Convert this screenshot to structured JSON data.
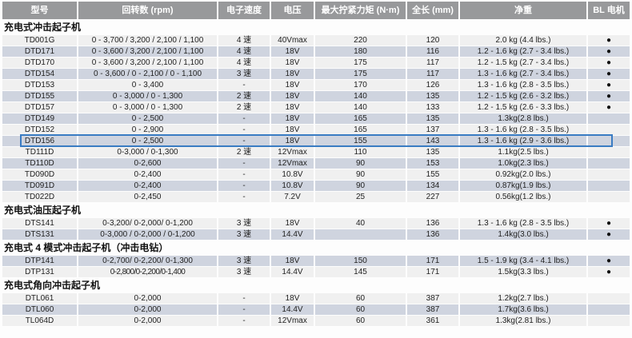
{
  "table": {
    "selected_model": "DTD156",
    "bl_dot_glyph": "●",
    "colors": {
      "header_bg": "#98999b",
      "row_bg": "#f0f0f0",
      "row_alt_bg": "#cfd4df",
      "highlight_border": "#3a7cc3",
      "bl_dot": "#111111"
    },
    "columns": [
      {
        "key": "model",
        "label": "型号"
      },
      {
        "key": "rpm",
        "label": "回转数 (rpm)"
      },
      {
        "key": "speed",
        "label": "电子速度"
      },
      {
        "key": "voltage",
        "label": "电压"
      },
      {
        "key": "torque",
        "label": "最大拧紧力矩 (N·m)"
      },
      {
        "key": "length",
        "label": "全长 (mm)"
      },
      {
        "key": "weight",
        "label": "净重"
      },
      {
        "key": "bl",
        "label": "BL 电机"
      }
    ],
    "sections": [
      {
        "title": "充电式冲击起子机",
        "rows": [
          {
            "model": "TD001G",
            "rpm": "0 - 3,700 / 3,200 / 2,100 / 1,100",
            "speed": "4 速",
            "voltage": "40Vmax",
            "torque": "220",
            "length": "120",
            "weight": "2.0 kg (4.4 lbs.)",
            "bl": true
          },
          {
            "model": "DTD171",
            "rpm": "0 - 3,600 / 3,200 / 2,100 / 1,100",
            "speed": "4 速",
            "voltage": "18V",
            "torque": "180",
            "length": "116",
            "weight": "1.2 - 1.6 kg (2.7 - 3.4 lbs.)",
            "bl": true
          },
          {
            "model": "DTD170",
            "rpm": "0 - 3,600 / 3,200 / 2,100 / 1,100",
            "speed": "4 速",
            "voltage": "18V",
            "torque": "175",
            "length": "117",
            "weight": "1.2 - 1.5 kg (2.7 - 3.4 lbs.)",
            "bl": true
          },
          {
            "model": "DTD154",
            "rpm": "0 - 3,600 / 0 - 2,100 / 0 - 1,100",
            "speed": "3 速",
            "voltage": "18V",
            "torque": "175",
            "length": "117",
            "weight": "1.3 - 1.6 kg (2.7 - 3.4 lbs.)",
            "bl": true
          },
          {
            "model": "DTD153",
            "rpm": "0 - 3,400",
            "speed": "-",
            "voltage": "18V",
            "torque": "170",
            "length": "126",
            "weight": "1.3 - 1.6 kg (2.8 - 3.5 lbs.)",
            "bl": true
          },
          {
            "model": "DTD155",
            "rpm": "0 - 3,000 / 0 - 1,300",
            "speed": "2 速",
            "voltage": "18V",
            "torque": "140",
            "length": "135",
            "weight": "1.2 - 1.5 kg (2.6 - 3.2 lbs.)",
            "bl": true
          },
          {
            "model": "DTD157",
            "rpm": "0 - 3,000 / 0 - 1,300",
            "speed": "2 速",
            "voltage": "18V",
            "torque": "140",
            "length": "133",
            "weight": "1.2 - 1.5 kg (2.6 - 3.3 lbs.)",
            "bl": true
          },
          {
            "model": "DTD149",
            "rpm": "0 - 2,500",
            "speed": "-",
            "voltage": "18V",
            "torque": "165",
            "length": "135",
            "weight": "1.3kg(2.8 lbs.)",
            "bl": false
          },
          {
            "model": "DTD152",
            "rpm": "0 - 2,900",
            "speed": "-",
            "voltage": "18V",
            "torque": "165",
            "length": "137",
            "weight": "1.3 - 1.6 kg (2.8 - 3.5 lbs.)",
            "bl": false
          },
          {
            "model": "DTD156",
            "rpm": "0 - 2,500",
            "speed": "-",
            "voltage": "18V",
            "torque": "155",
            "length": "143",
            "weight": "1.3 - 1.6 kg (2.9 - 3.6 lbs.)",
            "bl": false
          },
          {
            "model": "TD111D",
            "rpm": "0-3,000 / 0-1,300",
            "speed": "2 速",
            "voltage": "12Vmax",
            "torque": "110",
            "length": "135",
            "weight": "1.1kg(2.5 lbs.)",
            "bl": false
          },
          {
            "model": "TD110D",
            "rpm": "0-2,600",
            "speed": "-",
            "voltage": "12Vmax",
            "torque": "90",
            "length": "153",
            "weight": "1.0kg(2.3 lbs.)",
            "bl": false
          },
          {
            "model": "TD090D",
            "rpm": "0-2,400",
            "speed": "-",
            "voltage": "10.8V",
            "torque": "90",
            "length": "155",
            "weight": "0.92kg(2.0 lbs.)",
            "bl": false
          },
          {
            "model": "TD091D",
            "rpm": "0-2,400",
            "speed": "-",
            "voltage": "10.8V",
            "torque": "90",
            "length": "134",
            "weight": "0.87kg(1.9 lbs.)",
            "bl": false
          },
          {
            "model": "TD022D",
            "rpm": "0-2,450",
            "speed": "-",
            "voltage": "7.2V",
            "torque": "25",
            "length": "227",
            "weight": "0.56kg(1.2 lbs.)",
            "bl": false
          }
        ]
      },
      {
        "title": "充电式油压起子机",
        "rows": [
          {
            "model": "DTS141",
            "rpm": "0-3,200/ 0-2,000/ 0-1,200",
            "speed": "3 速",
            "voltage": "18V",
            "torque": "40",
            "length": "136",
            "weight": "1.3 - 1.6 kg (2.8 - 3.5 lbs.)",
            "bl": true
          },
          {
            "model": "DTS131",
            "rpm": "0-3,000 / 0-2,000 / 0-1,200",
            "speed": "3 速",
            "voltage": "14.4V",
            "torque": "",
            "length": "136",
            "weight": "1.4kg(3.0 lbs.)",
            "bl": true
          }
        ]
      },
      {
        "title": "充电式 4 模式冲击起子机（冲击电钻）",
        "rows": [
          {
            "model": "DTP141",
            "rpm": "0-2,700/ 0-2,200/ 0-1,300",
            "speed": "3 速",
            "voltage": "18V",
            "torque": "150",
            "length": "171",
            "weight": "1.5 - 1.9 kg (3.4 - 4.1 lbs.)",
            "bl": true
          },
          {
            "model": "DTP131",
            "rpm": "0-2,800/0-2,200/0-1,400",
            "speed": "3 速",
            "voltage": "14.4V",
            "torque": "145",
            "length": "171",
            "weight": "1.5kg(3.3 lbs.)",
            "bl": true
          }
        ]
      },
      {
        "title": "充电式角向冲击起子机",
        "rows": [
          {
            "model": "DTL061",
            "rpm": "0-2,000",
            "speed": "-",
            "voltage": "18V",
            "torque": "60",
            "length": "387",
            "weight": "1.2kg(2.7 lbs.)",
            "bl": false
          },
          {
            "model": "DTL060",
            "rpm": "0-2,000",
            "speed": "-",
            "voltage": "14.4V",
            "torque": "60",
            "length": "387",
            "weight": "1.7kg(3.6 lbs.)",
            "bl": false
          },
          {
            "model": "TL064D",
            "rpm": "0-2,000",
            "speed": "-",
            "voltage": "12Vmax",
            "torque": "60",
            "length": "361",
            "weight": "1.3kg(2.81 lbs.)",
            "bl": false
          }
        ]
      }
    ]
  }
}
